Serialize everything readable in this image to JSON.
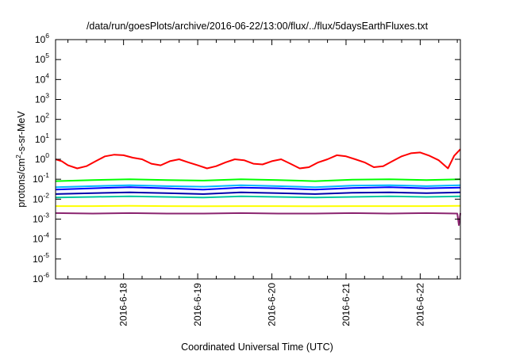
{
  "chart_data": {
    "type": "line",
    "title": "/data/run/goesPlots/archive/2016-06-22/13:00/flux/../flux/5daysEarthFluxes.txt",
    "xlabel": "Coordinated Universal Time (UTC)",
    "ylabel": "protons/cm2-s-sr-MeV",
    "ylabel_parts": {
      "before": "protons/cm",
      "sup": "2",
      "after": "-s-sr-MeV"
    },
    "yscale": "log",
    "ylim": [
      1e-06,
      1000000.0
    ],
    "y_ticks": [
      {
        "value": 1e-06,
        "base": "10",
        "exp": "-6"
      },
      {
        "value": 1e-05,
        "base": "10",
        "exp": "-5"
      },
      {
        "value": 0.0001,
        "base": "10",
        "exp": "-4"
      },
      {
        "value": 0.001,
        "base": "10",
        "exp": "-3"
      },
      {
        "value": 0.01,
        "base": "10",
        "exp": "-2"
      },
      {
        "value": 0.1,
        "base": "10",
        "exp": "-1"
      },
      {
        "value": 1,
        "base": "10",
        "exp": "0"
      },
      {
        "value": 10.0,
        "base": "10",
        "exp": "1"
      },
      {
        "value": 100.0,
        "base": "10",
        "exp": "2"
      },
      {
        "value": 1000.0,
        "base": "10",
        "exp": "3"
      },
      {
        "value": 10000.0,
        "base": "10",
        "exp": "4"
      },
      {
        "value": 100000.0,
        "base": "10",
        "exp": "5"
      },
      {
        "value": 1000000.0,
        "base": "10",
        "exp": "6"
      }
    ],
    "xlim": [
      "2016-06-17T02:00",
      "2016-06-22T13:00"
    ],
    "x_ticks": [
      "2016-6-18",
      "2016-6-19",
      "2016-6-20",
      "2016-6-21",
      "2016-6-22"
    ],
    "grid": false,
    "series": [
      {
        "color": "#ff0000",
        "x": [
          "2016-06-17T02:00",
          "2016-06-17T04:00",
          "2016-06-17T06:00",
          "2016-06-17T09:00",
          "2016-06-17T12:00",
          "2016-06-17T15:00",
          "2016-06-17T18:00",
          "2016-06-17T21:00",
          "2016-06-18T00:00",
          "2016-06-18T03:00",
          "2016-06-18T06:00",
          "2016-06-18T09:00",
          "2016-06-18T12:00",
          "2016-06-18T15:00",
          "2016-06-18T18:00",
          "2016-06-18T21:00",
          "2016-06-19T00:00",
          "2016-06-19T03:00",
          "2016-06-19T06:00",
          "2016-06-19T09:00",
          "2016-06-19T12:00",
          "2016-06-19T15:00",
          "2016-06-19T18:00",
          "2016-06-19T21:00",
          "2016-06-20T00:00",
          "2016-06-20T03:00",
          "2016-06-20T06:00",
          "2016-06-20T09:00",
          "2016-06-20T12:00",
          "2016-06-20T15:00",
          "2016-06-20T18:00",
          "2016-06-20T21:00",
          "2016-06-21T00:00",
          "2016-06-21T03:00",
          "2016-06-21T06:00",
          "2016-06-21T09:00",
          "2016-06-21T12:00",
          "2016-06-21T15:00",
          "2016-06-21T18:00",
          "2016-06-21T21:00",
          "2016-06-22T00:00",
          "2016-06-22T03:00",
          "2016-06-22T06:00",
          "2016-06-22T09:00",
          "2016-06-22T11:00",
          "2016-06-22T13:00"
        ],
        "values": [
          1.0,
          0.8,
          0.5,
          0.35,
          0.45,
          0.8,
          1.4,
          1.7,
          1.6,
          1.2,
          1.0,
          0.6,
          0.5,
          0.8,
          1.0,
          0.7,
          0.5,
          0.35,
          0.45,
          0.7,
          1.0,
          0.9,
          0.6,
          0.55,
          0.8,
          1.0,
          0.6,
          0.35,
          0.4,
          0.7,
          1.0,
          1.6,
          1.4,
          1.0,
          0.7,
          0.4,
          0.45,
          0.8,
          1.4,
          2.0,
          2.2,
          1.5,
          0.9,
          0.35,
          1.5,
          3.2
        ]
      },
      {
        "color": "#00ff00",
        "x": [
          "2016-06-17T02:00",
          "2016-06-17T14:00",
          "2016-06-18T02:00",
          "2016-06-18T14:00",
          "2016-06-19T02:00",
          "2016-06-19T14:00",
          "2016-06-20T02:00",
          "2016-06-20T14:00",
          "2016-06-21T02:00",
          "2016-06-21T14:00",
          "2016-06-22T02:00",
          "2016-06-22T13:00"
        ],
        "values": [
          0.08,
          0.09,
          0.1,
          0.09,
          0.085,
          0.1,
          0.09,
          0.08,
          0.095,
          0.1,
          0.09,
          0.1
        ]
      },
      {
        "color": "#00b8ff",
        "x": [
          "2016-06-17T02:00",
          "2016-06-17T14:00",
          "2016-06-18T02:00",
          "2016-06-18T14:00",
          "2016-06-19T02:00",
          "2016-06-19T14:00",
          "2016-06-20T02:00",
          "2016-06-20T14:00",
          "2016-06-21T02:00",
          "2016-06-21T14:00",
          "2016-06-22T02:00",
          "2016-06-22T13:00"
        ],
        "values": [
          0.04,
          0.045,
          0.05,
          0.045,
          0.042,
          0.05,
          0.045,
          0.04,
          0.048,
          0.05,
          0.045,
          0.05
        ]
      },
      {
        "color": "#0000ff",
        "x": [
          "2016-06-17T02:00",
          "2016-06-17T14:00",
          "2016-06-18T02:00",
          "2016-06-18T14:00",
          "2016-06-19T02:00",
          "2016-06-19T14:00",
          "2016-06-20T02:00",
          "2016-06-20T14:00",
          "2016-06-21T02:00",
          "2016-06-21T14:00",
          "2016-06-22T02:00",
          "2016-06-22T13:00"
        ],
        "values": [
          0.03,
          0.035,
          0.04,
          0.035,
          0.03,
          0.038,
          0.035,
          0.03,
          0.036,
          0.04,
          0.035,
          0.038
        ]
      },
      {
        "color": "#00c8a0",
        "x": [
          "2016-06-17T02:00",
          "2016-06-17T14:00",
          "2016-06-18T02:00",
          "2016-06-18T14:00",
          "2016-06-19T02:00",
          "2016-06-19T14:00",
          "2016-06-20T02:00",
          "2016-06-20T14:00",
          "2016-06-21T02:00",
          "2016-06-21T14:00",
          "2016-06-22T02:00",
          "2016-06-22T13:00"
        ],
        "values": [
          0.012,
          0.013,
          0.014,
          0.013,
          0.012,
          0.014,
          0.013,
          0.012,
          0.013,
          0.014,
          0.013,
          0.014
        ]
      },
      {
        "color": "#0000aa",
        "x": [
          "2016-06-17T02:00",
          "2016-06-17T14:00",
          "2016-06-18T02:00",
          "2016-06-18T14:00",
          "2016-06-19T02:00",
          "2016-06-19T14:00",
          "2016-06-20T02:00",
          "2016-06-20T14:00",
          "2016-06-21T02:00",
          "2016-06-21T14:00",
          "2016-06-22T02:00",
          "2016-06-22T13:00"
        ],
        "values": [
          0.018,
          0.02,
          0.022,
          0.02,
          0.018,
          0.022,
          0.02,
          0.018,
          0.021,
          0.022,
          0.02,
          0.022
        ]
      },
      {
        "color": "#ffff00",
        "x": [
          "2016-06-17T02:00",
          "2016-06-17T14:00",
          "2016-06-18T02:00",
          "2016-06-18T14:00",
          "2016-06-19T02:00",
          "2016-06-19T14:00",
          "2016-06-20T02:00",
          "2016-06-20T14:00",
          "2016-06-21T02:00",
          "2016-06-21T14:00",
          "2016-06-22T02:00",
          "2016-06-22T13:00"
        ],
        "values": [
          0.0045,
          0.0045,
          0.0046,
          0.0045,
          0.0044,
          0.0045,
          0.0045,
          0.0044,
          0.0045,
          0.0045,
          0.0045,
          0.0046
        ]
      },
      {
        "color": "#8b2570",
        "x": [
          "2016-06-17T02:00",
          "2016-06-17T14:00",
          "2016-06-18T02:00",
          "2016-06-18T14:00",
          "2016-06-19T02:00",
          "2016-06-19T14:00",
          "2016-06-20T02:00",
          "2016-06-20T14:00",
          "2016-06-21T02:00",
          "2016-06-21T14:00",
          "2016-06-22T02:00",
          "2016-06-22T12:00",
          "2016-06-22T12:30",
          "2016-06-22T13:00"
        ],
        "values": [
          0.002,
          0.0019,
          0.002,
          0.0019,
          0.0019,
          0.002,
          0.0019,
          0.0019,
          0.002,
          0.0019,
          0.002,
          0.0019,
          0.0005,
          0.002
        ]
      }
    ]
  }
}
